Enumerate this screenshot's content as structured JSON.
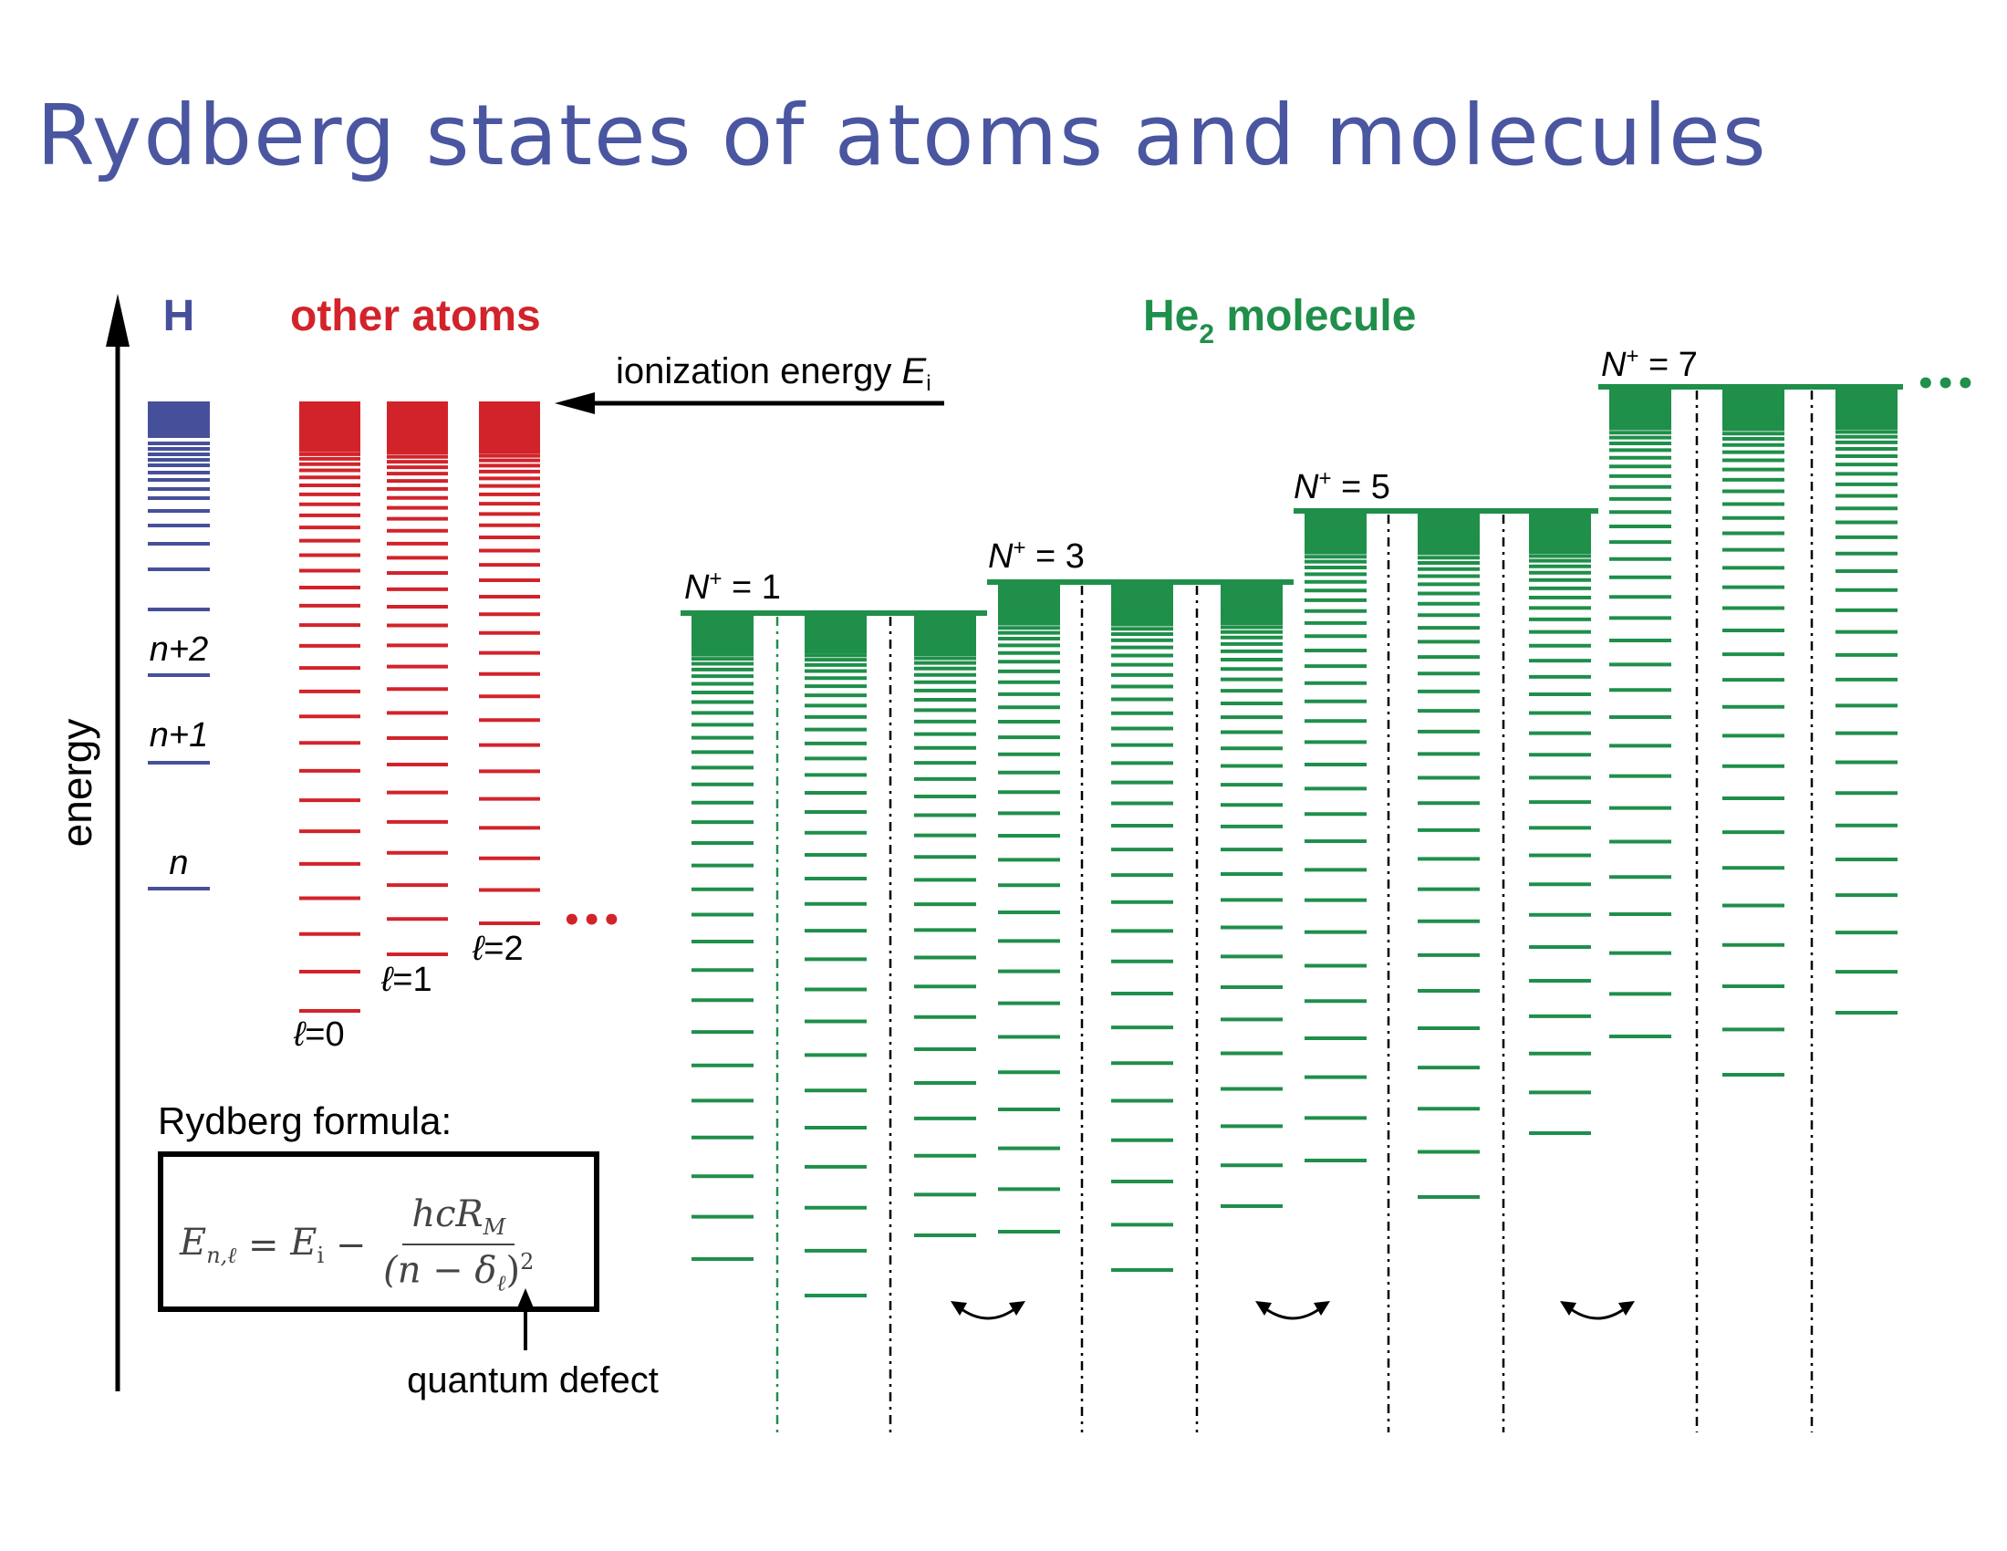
{
  "title": "Rydberg states of atoms and molecules",
  "labels": {
    "h_heading": "H",
    "other_atoms_heading": "other atoms",
    "molecule_heading_main": "He",
    "molecule_heading_sub": "2",
    "molecule_heading_rest": " molecule",
    "energy_axis": "energy",
    "ionization_energy": "ionization energy ",
    "ionization_symbol": "E",
    "ionization_sub": "i",
    "n": "n",
    "n_plus_1": "n+1",
    "n_plus_2": "n+2",
    "ell_symbol": "ℓ",
    "ell_0": "=0",
    "ell_1": "=1",
    "ell_2": "=2",
    "ellipsis": "•••",
    "rydberg_formula_label": "Rydberg formula:",
    "quantum_defect": "quantum defect",
    "N_symbol": "N",
    "N_plus": "+",
    "N1": " = 1",
    "N3": " = 3",
    "N5": " = 5",
    "N7": " = 7"
  },
  "formula": {
    "lhs": "E",
    "lhs_sub": "n,ℓ",
    "eq": " = ",
    "ei": "E",
    "ei_sub": "i",
    "minus": " − ",
    "numerator": "hcR",
    "numerator_sub": "M",
    "denominator": "(n − δ",
    "denominator_sub": "ℓ",
    "denominator_end": ")",
    "denominator_sup": "2"
  },
  "colors": {
    "hydrogen": "#46509a",
    "other_atoms": "#d2232a",
    "molecule": "#1f8f4a",
    "title": "#4a56a0",
    "text": "#000000"
  },
  "icons": [
    "energy-axis-arrow",
    "ionization-arrow",
    "quantum-defect-arrow",
    "mixing-double-arrow-icon"
  ]
}
